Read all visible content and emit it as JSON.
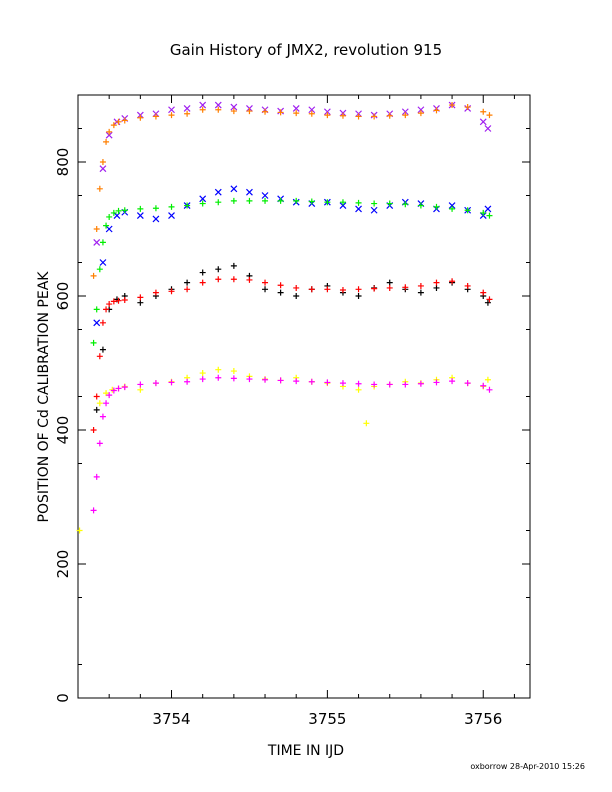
{
  "chart_data": {
    "type": "scatter",
    "title": "Gain History of JMX2, revolution 915",
    "xlabel": "TIME IN IJD",
    "ylabel": "POSITION OF Cd CALIBRATION PEAK",
    "xlim": [
      3753.4,
      3756.3
    ],
    "ylim": [
      0,
      900
    ],
    "xticks": [
      3754,
      3755,
      3756
    ],
    "xtick_labels": [
      "3754",
      "3755",
      "3756"
    ],
    "yticks": [
      0,
      200,
      400,
      600,
      800
    ],
    "ytick_labels": [
      "0",
      "200",
      "400",
      "600",
      "800"
    ],
    "grid": false,
    "legend": "none",
    "footer": "oxborrow 28-Apr-2010 15:26",
    "series": [
      {
        "color": "#a020f0",
        "marker": "x",
        "x": [
          3753.52,
          3753.56,
          3753.6,
          3753.65,
          3753.7,
          3753.8,
          3753.9,
          3754.0,
          3754.1,
          3754.2,
          3754.3,
          3754.4,
          3754.5,
          3754.6,
          3754.7,
          3754.8,
          3754.9,
          3755.0,
          3755.1,
          3755.2,
          3755.3,
          3755.4,
          3755.5,
          3755.6,
          3755.7,
          3755.8,
          3755.9,
          3756.0,
          3756.03
        ],
        "y": [
          680,
          790,
          840,
          860,
          865,
          870,
          872,
          878,
          880,
          885,
          885,
          882,
          880,
          878,
          876,
          880,
          878,
          875,
          873,
          872,
          870,
          872,
          875,
          878,
          880,
          885,
          880,
          860,
          850
        ]
      },
      {
        "color": "#ff7f00",
        "marker": "+",
        "x": [
          3753.5,
          3753.52,
          3753.54,
          3753.56,
          3753.58,
          3753.6,
          3753.63,
          3753.66,
          3753.7,
          3753.8,
          3753.9,
          3754.0,
          3754.1,
          3754.2,
          3754.3,
          3754.4,
          3754.5,
          3754.6,
          3754.7,
          3754.8,
          3754.9,
          3755.0,
          3755.1,
          3755.2,
          3755.3,
          3755.4,
          3755.5,
          3755.6,
          3755.7,
          3755.8,
          3755.9,
          3756.0,
          3756.04
        ],
        "y": [
          630,
          700,
          760,
          800,
          830,
          845,
          855,
          860,
          862,
          866,
          868,
          870,
          872,
          878,
          878,
          876,
          876,
          875,
          874,
          873,
          872,
          870,
          869,
          868,
          868,
          869,
          870,
          873,
          877,
          885,
          882,
          875,
          870
        ]
      },
      {
        "color": "#0000ff",
        "marker": "x",
        "x": [
          3753.52,
          3753.56,
          3753.6,
          3753.65,
          3753.7,
          3753.8,
          3753.9,
          3754.0,
          3754.1,
          3754.2,
          3754.3,
          3754.4,
          3754.5,
          3754.6,
          3754.7,
          3754.8,
          3754.9,
          3755.0,
          3755.1,
          3755.2,
          3755.3,
          3755.4,
          3755.5,
          3755.6,
          3755.7,
          3755.8,
          3755.9,
          3756.0,
          3756.03
        ],
        "y": [
          560,
          650,
          700,
          720,
          725,
          720,
          715,
          720,
          735,
          745,
          755,
          760,
          755,
          750,
          745,
          740,
          738,
          740,
          735,
          730,
          728,
          735,
          740,
          738,
          730,
          735,
          728,
          720,
          730
        ]
      },
      {
        "color": "#00ee00",
        "marker": "+",
        "x": [
          3753.5,
          3753.52,
          3753.54,
          3753.56,
          3753.58,
          3753.6,
          3753.63,
          3753.66,
          3753.7,
          3753.8,
          3753.9,
          3754.0,
          3754.1,
          3754.2,
          3754.3,
          3754.4,
          3754.5,
          3754.6,
          3754.7,
          3754.8,
          3754.9,
          3755.0,
          3755.1,
          3755.2,
          3755.3,
          3755.4,
          3755.5,
          3755.6,
          3755.7,
          3755.8,
          3755.9,
          3756.0,
          3756.04
        ],
        "y": [
          530,
          580,
          640,
          680,
          705,
          718,
          724,
          727,
          728,
          730,
          731,
          733,
          735,
          738,
          740,
          742,
          742,
          742,
          742,
          742,
          741,
          740,
          740,
          739,
          738,
          738,
          737,
          735,
          733,
          730,
          728,
          724,
          720
        ]
      },
      {
        "color": "#000000",
        "marker": "+",
        "x": [
          3753.52,
          3753.56,
          3753.6,
          3753.65,
          3753.7,
          3753.8,
          3753.9,
          3754.0,
          3754.1,
          3754.2,
          3754.3,
          3754.4,
          3754.5,
          3754.6,
          3754.7,
          3754.8,
          3754.9,
          3755.0,
          3755.1,
          3755.2,
          3755.3,
          3755.4,
          3755.5,
          3755.6,
          3755.7,
          3755.8,
          3755.9,
          3756.0,
          3756.03
        ],
        "y": [
          430,
          520,
          580,
          595,
          600,
          590,
          600,
          610,
          620,
          635,
          640,
          645,
          630,
          610,
          605,
          600,
          610,
          615,
          605,
          600,
          612,
          620,
          610,
          605,
          612,
          620,
          610,
          600,
          590
        ]
      },
      {
        "color": "#ff0000",
        "marker": "+",
        "x": [
          3753.5,
          3753.52,
          3753.54,
          3753.56,
          3753.58,
          3753.6,
          3753.63,
          3753.66,
          3753.7,
          3753.8,
          3753.9,
          3754.0,
          3754.1,
          3754.2,
          3754.3,
          3754.4,
          3754.5,
          3754.6,
          3754.7,
          3754.8,
          3754.9,
          3755.0,
          3755.1,
          3755.2,
          3755.3,
          3755.4,
          3755.5,
          3755.6,
          3755.7,
          3755.8,
          3755.9,
          3756.0,
          3756.04
        ],
        "y": [
          400,
          450,
          510,
          560,
          580,
          588,
          592,
          593,
          594,
          598,
          605,
          607,
          610,
          620,
          625,
          625,
          624,
          620,
          616,
          612,
          610,
          610,
          609,
          610,
          611,
          612,
          613,
          615,
          620,
          622,
          615,
          605,
          595
        ]
      },
      {
        "color": "#ffff00",
        "marker": "+",
        "x": [
          3753.54,
          3753.58,
          3753.62,
          3753.66,
          3753.7,
          3753.8,
          3753.9,
          3754.0,
          3754.1,
          3754.2,
          3754.3,
          3754.4,
          3754.5,
          3754.6,
          3754.7,
          3754.8,
          3754.9,
          3755.0,
          3755.1,
          3755.2,
          3755.25,
          3755.3,
          3755.4,
          3755.5,
          3755.6,
          3755.7,
          3755.8,
          3755.9,
          3756.0,
          3756.03
        ],
        "y": [
          440,
          455,
          460,
          462,
          465,
          460,
          470,
          472,
          478,
          485,
          490,
          488,
          480,
          476,
          474,
          478,
          472,
          470,
          465,
          460,
          410,
          465,
          468,
          472,
          470,
          475,
          478,
          470,
          465,
          475
        ]
      },
      {
        "color": "#ff00ff",
        "marker": "+",
        "x": [
          3753.5,
          3753.52,
          3753.54,
          3753.56,
          3753.58,
          3753.6,
          3753.63,
          3753.66,
          3753.7,
          3753.8,
          3753.9,
          3754.0,
          3754.1,
          3754.2,
          3754.3,
          3754.4,
          3754.5,
          3754.6,
          3754.7,
          3754.8,
          3754.9,
          3755.0,
          3755.1,
          3755.2,
          3755.3,
          3755.4,
          3755.5,
          3755.6,
          3755.7,
          3755.8,
          3755.9,
          3756.0,
          3756.04
        ],
        "y": [
          280,
          330,
          380,
          420,
          440,
          452,
          459,
          462,
          464,
          468,
          470,
          471,
          472,
          476,
          478,
          477,
          476,
          475,
          474,
          473,
          472,
          471,
          470,
          469,
          468,
          468,
          468,
          469,
          471,
          473,
          470,
          466,
          460
        ]
      },
      {
        "color": "#ffff00",
        "marker": "+",
        "x": [
          3753.41
        ],
        "y": [
          250
        ]
      }
    ]
  }
}
